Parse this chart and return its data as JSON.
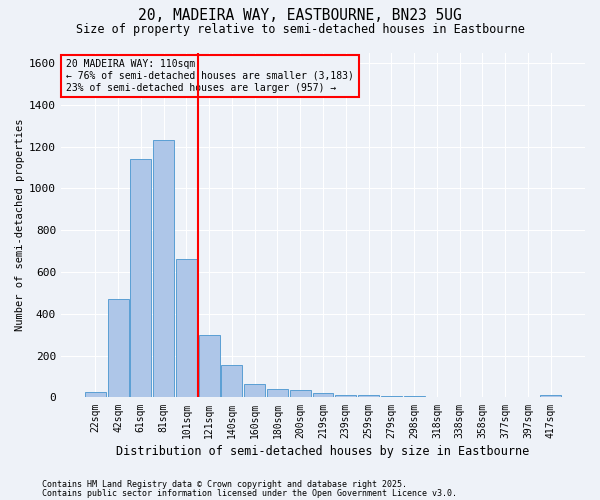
{
  "title_line1": "20, MADEIRA WAY, EASTBOURNE, BN23 5UG",
  "title_line2": "Size of property relative to semi-detached houses in Eastbourne",
  "xlabel": "Distribution of semi-detached houses by size in Eastbourne",
  "ylabel": "Number of semi-detached properties",
  "footnote1": "Contains HM Land Registry data © Crown copyright and database right 2025.",
  "footnote2": "Contains public sector information licensed under the Open Government Licence v3.0.",
  "bar_labels": [
    "22sqm",
    "42sqm",
    "61sqm",
    "81sqm",
    "101sqm",
    "121sqm",
    "140sqm",
    "160sqm",
    "180sqm",
    "200sqm",
    "219sqm",
    "239sqm",
    "259sqm",
    "279sqm",
    "298sqm",
    "318sqm",
    "338sqm",
    "358sqm",
    "377sqm",
    "397sqm",
    "417sqm"
  ],
  "bar_values": [
    25,
    470,
    1140,
    1230,
    660,
    300,
    155,
    65,
    40,
    35,
    20,
    10,
    10,
    8,
    5,
    3,
    2,
    2,
    2,
    2,
    10
  ],
  "bar_color": "#aec6e8",
  "bar_edgecolor": "#5a9fd4",
  "vline_x": 4.5,
  "vline_color": "red",
  "annotation_title": "20 MADEIRA WAY: 110sqm",
  "annotation_line2": "← 76% of semi-detached houses are smaller (3,183)",
  "annotation_line3": "23% of semi-detached houses are larger (957) →",
  "annotation_box_color": "red",
  "ylim": [
    0,
    1650
  ],
  "yticks": [
    0,
    200,
    400,
    600,
    800,
    1000,
    1200,
    1400,
    1600
  ],
  "background_color": "#eef2f8",
  "grid_color": "white"
}
